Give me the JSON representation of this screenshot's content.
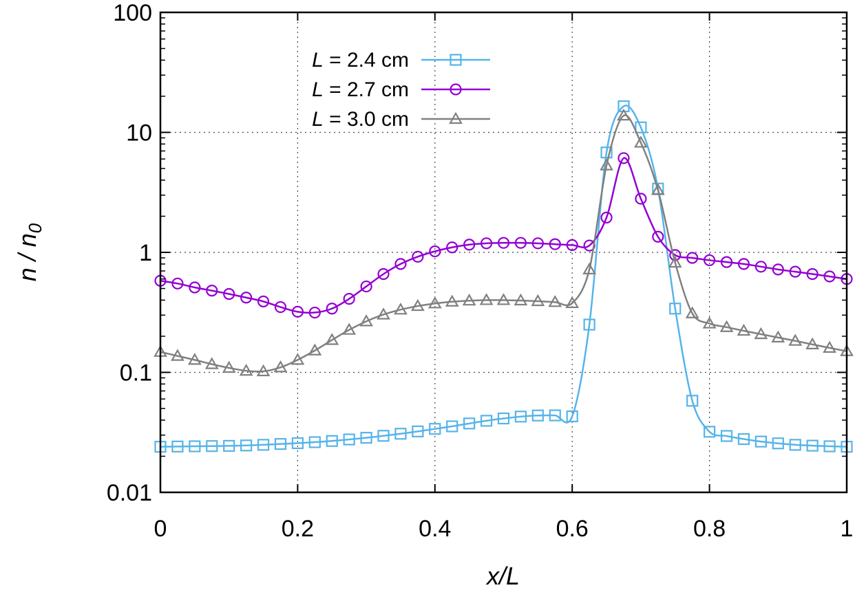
{
  "chart_data": {
    "type": "line",
    "title": "",
    "xlabel": "x/L",
    "ylabel": "n / n0",
    "ylabel_parts": {
      "base": "n / n",
      "sub": "0"
    },
    "x_scale": "linear",
    "y_scale": "log",
    "xlim": [
      0,
      1
    ],
    "ylim": [
      0.01,
      100
    ],
    "x_ticks": [
      0,
      0.2,
      0.4,
      0.6,
      0.8,
      1
    ],
    "x_tick_labels": [
      "0",
      "0.2",
      "0.4",
      "0.6",
      "0.8",
      "1"
    ],
    "y_ticks": [
      0.01,
      0.1,
      1,
      10,
      100
    ],
    "y_tick_labels": [
      "0.01",
      "0.1",
      "1",
      "10",
      "100"
    ],
    "grid": true,
    "legend_position": "top-left",
    "series": [
      {
        "name": "L = 2.4 cm",
        "name_parts": {
          "var": "L",
          "rest": " = 2.4 cm"
        },
        "color": "#56b4e9",
        "marker": "square",
        "x": [
          0,
          0.025,
          0.05,
          0.075,
          0.1,
          0.125,
          0.15,
          0.175,
          0.2,
          0.225,
          0.25,
          0.275,
          0.3,
          0.325,
          0.35,
          0.375,
          0.4,
          0.425,
          0.45,
          0.475,
          0.5,
          0.525,
          0.55,
          0.575,
          0.6,
          0.625,
          0.65,
          0.675,
          0.7,
          0.725,
          0.75,
          0.775,
          0.8,
          0.825,
          0.85,
          0.875,
          0.9,
          0.925,
          0.95,
          0.975,
          1.0
        ],
        "y": [
          0.024,
          0.0241,
          0.0242,
          0.0243,
          0.0244,
          0.0246,
          0.0249,
          0.0253,
          0.0257,
          0.0262,
          0.0268,
          0.0276,
          0.0285,
          0.0296,
          0.0308,
          0.0322,
          0.0338,
          0.0355,
          0.0375,
          0.0395,
          0.0413,
          0.0428,
          0.0437,
          0.0438,
          0.043,
          0.25,
          6.8,
          16.5,
          11.0,
          3.4,
          0.34,
          0.058,
          0.032,
          0.0295,
          0.0278,
          0.0265,
          0.0256,
          0.0249,
          0.0245,
          0.0242,
          0.024
        ]
      },
      {
        "name": "L = 2.7 cm",
        "name_parts": {
          "var": "L",
          "rest": " = 2.7 cm"
        },
        "color": "#9400d3",
        "marker": "circle",
        "x": [
          0,
          0.025,
          0.05,
          0.075,
          0.1,
          0.125,
          0.15,
          0.175,
          0.2,
          0.225,
          0.25,
          0.275,
          0.3,
          0.325,
          0.35,
          0.375,
          0.4,
          0.425,
          0.45,
          0.475,
          0.5,
          0.525,
          0.55,
          0.575,
          0.6,
          0.625,
          0.65,
          0.675,
          0.7,
          0.725,
          0.75,
          0.775,
          0.8,
          0.825,
          0.85,
          0.875,
          0.9,
          0.925,
          0.95,
          0.975,
          1.0
        ],
        "y": [
          0.58,
          0.55,
          0.51,
          0.48,
          0.45,
          0.42,
          0.39,
          0.35,
          0.32,
          0.315,
          0.34,
          0.41,
          0.52,
          0.66,
          0.8,
          0.92,
          1.02,
          1.1,
          1.16,
          1.19,
          1.2,
          1.2,
          1.19,
          1.17,
          1.15,
          1.14,
          1.95,
          6.1,
          2.8,
          1.35,
          0.95,
          0.9,
          0.86,
          0.83,
          0.8,
          0.76,
          0.72,
          0.69,
          0.66,
          0.63,
          0.6
        ]
      },
      {
        "name": "L = 3.0 cm",
        "name_parts": {
          "var": "L",
          "rest": " = 3.0 cm"
        },
        "color": "#808080",
        "marker": "triangle",
        "x": [
          0,
          0.025,
          0.05,
          0.075,
          0.1,
          0.125,
          0.15,
          0.175,
          0.2,
          0.225,
          0.25,
          0.275,
          0.3,
          0.325,
          0.35,
          0.375,
          0.4,
          0.425,
          0.45,
          0.475,
          0.5,
          0.525,
          0.55,
          0.575,
          0.6,
          0.625,
          0.65,
          0.675,
          0.7,
          0.725,
          0.75,
          0.775,
          0.8,
          0.825,
          0.85,
          0.875,
          0.9,
          0.925,
          0.95,
          0.975,
          1.0
        ],
        "y": [
          0.148,
          0.137,
          0.127,
          0.117,
          0.109,
          0.103,
          0.102,
          0.11,
          0.127,
          0.152,
          0.186,
          0.226,
          0.266,
          0.303,
          0.333,
          0.357,
          0.375,
          0.388,
          0.396,
          0.4,
          0.4,
          0.397,
          0.392,
          0.385,
          0.377,
          0.72,
          5.3,
          13.8,
          8.2,
          3.3,
          0.82,
          0.31,
          0.255,
          0.238,
          0.222,
          0.208,
          0.195,
          0.183,
          0.171,
          0.16,
          0.15
        ]
      }
    ]
  }
}
